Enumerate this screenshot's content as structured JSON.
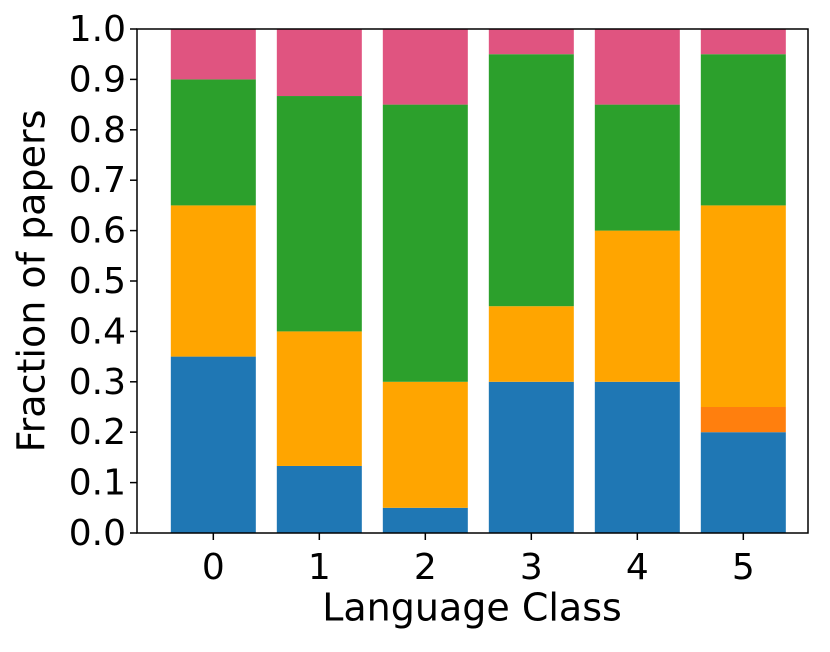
{
  "chart_data": {
    "type": "stacked_bar",
    "x_label": "Language Class",
    "y_label": "Fraction of papers",
    "categories": [
      "0",
      "1",
      "2",
      "3",
      "4",
      "5"
    ],
    "series": [
      {
        "color": "#1f77b4",
        "values": [
          0.35,
          0.133,
          0.05,
          0.3,
          0.3,
          0.2
        ]
      },
      {
        "color": "#ff7f0e",
        "values": [
          0,
          0,
          0,
          0,
          0,
          0.05
        ]
      },
      {
        "color": "#ffa500",
        "values": [
          0.3,
          0.267,
          0.25,
          0.15,
          0.3,
          0.4
        ]
      },
      {
        "color": "#2ca02c",
        "values": [
          0.25,
          0.467,
          0.55,
          0.5,
          0.25,
          0.3
        ]
      },
      {
        "color": "#e05480",
        "values": [
          0.1,
          0.133,
          0.15,
          0.05,
          0.15,
          0.05
        ]
      }
    ],
    "ylim": [
      0,
      1
    ],
    "yticks": [
      {
        "value": 0,
        "label": "0.0"
      },
      {
        "value": 0.1,
        "label": "0.1"
      },
      {
        "value": 0.2,
        "label": "0.2"
      },
      {
        "value": 0.3,
        "label": "0.3"
      },
      {
        "value": 0.4,
        "label": "0.4"
      },
      {
        "value": 0.5,
        "label": "0.5"
      },
      {
        "value": 0.6,
        "label": "0.6"
      },
      {
        "value": 0.7,
        "label": "0.7"
      },
      {
        "value": 0.8,
        "label": "0.8"
      },
      {
        "value": 0.9,
        "label": "0.9"
      },
      {
        "value": 1,
        "label": "1.0"
      }
    ],
    "grid": false
  }
}
